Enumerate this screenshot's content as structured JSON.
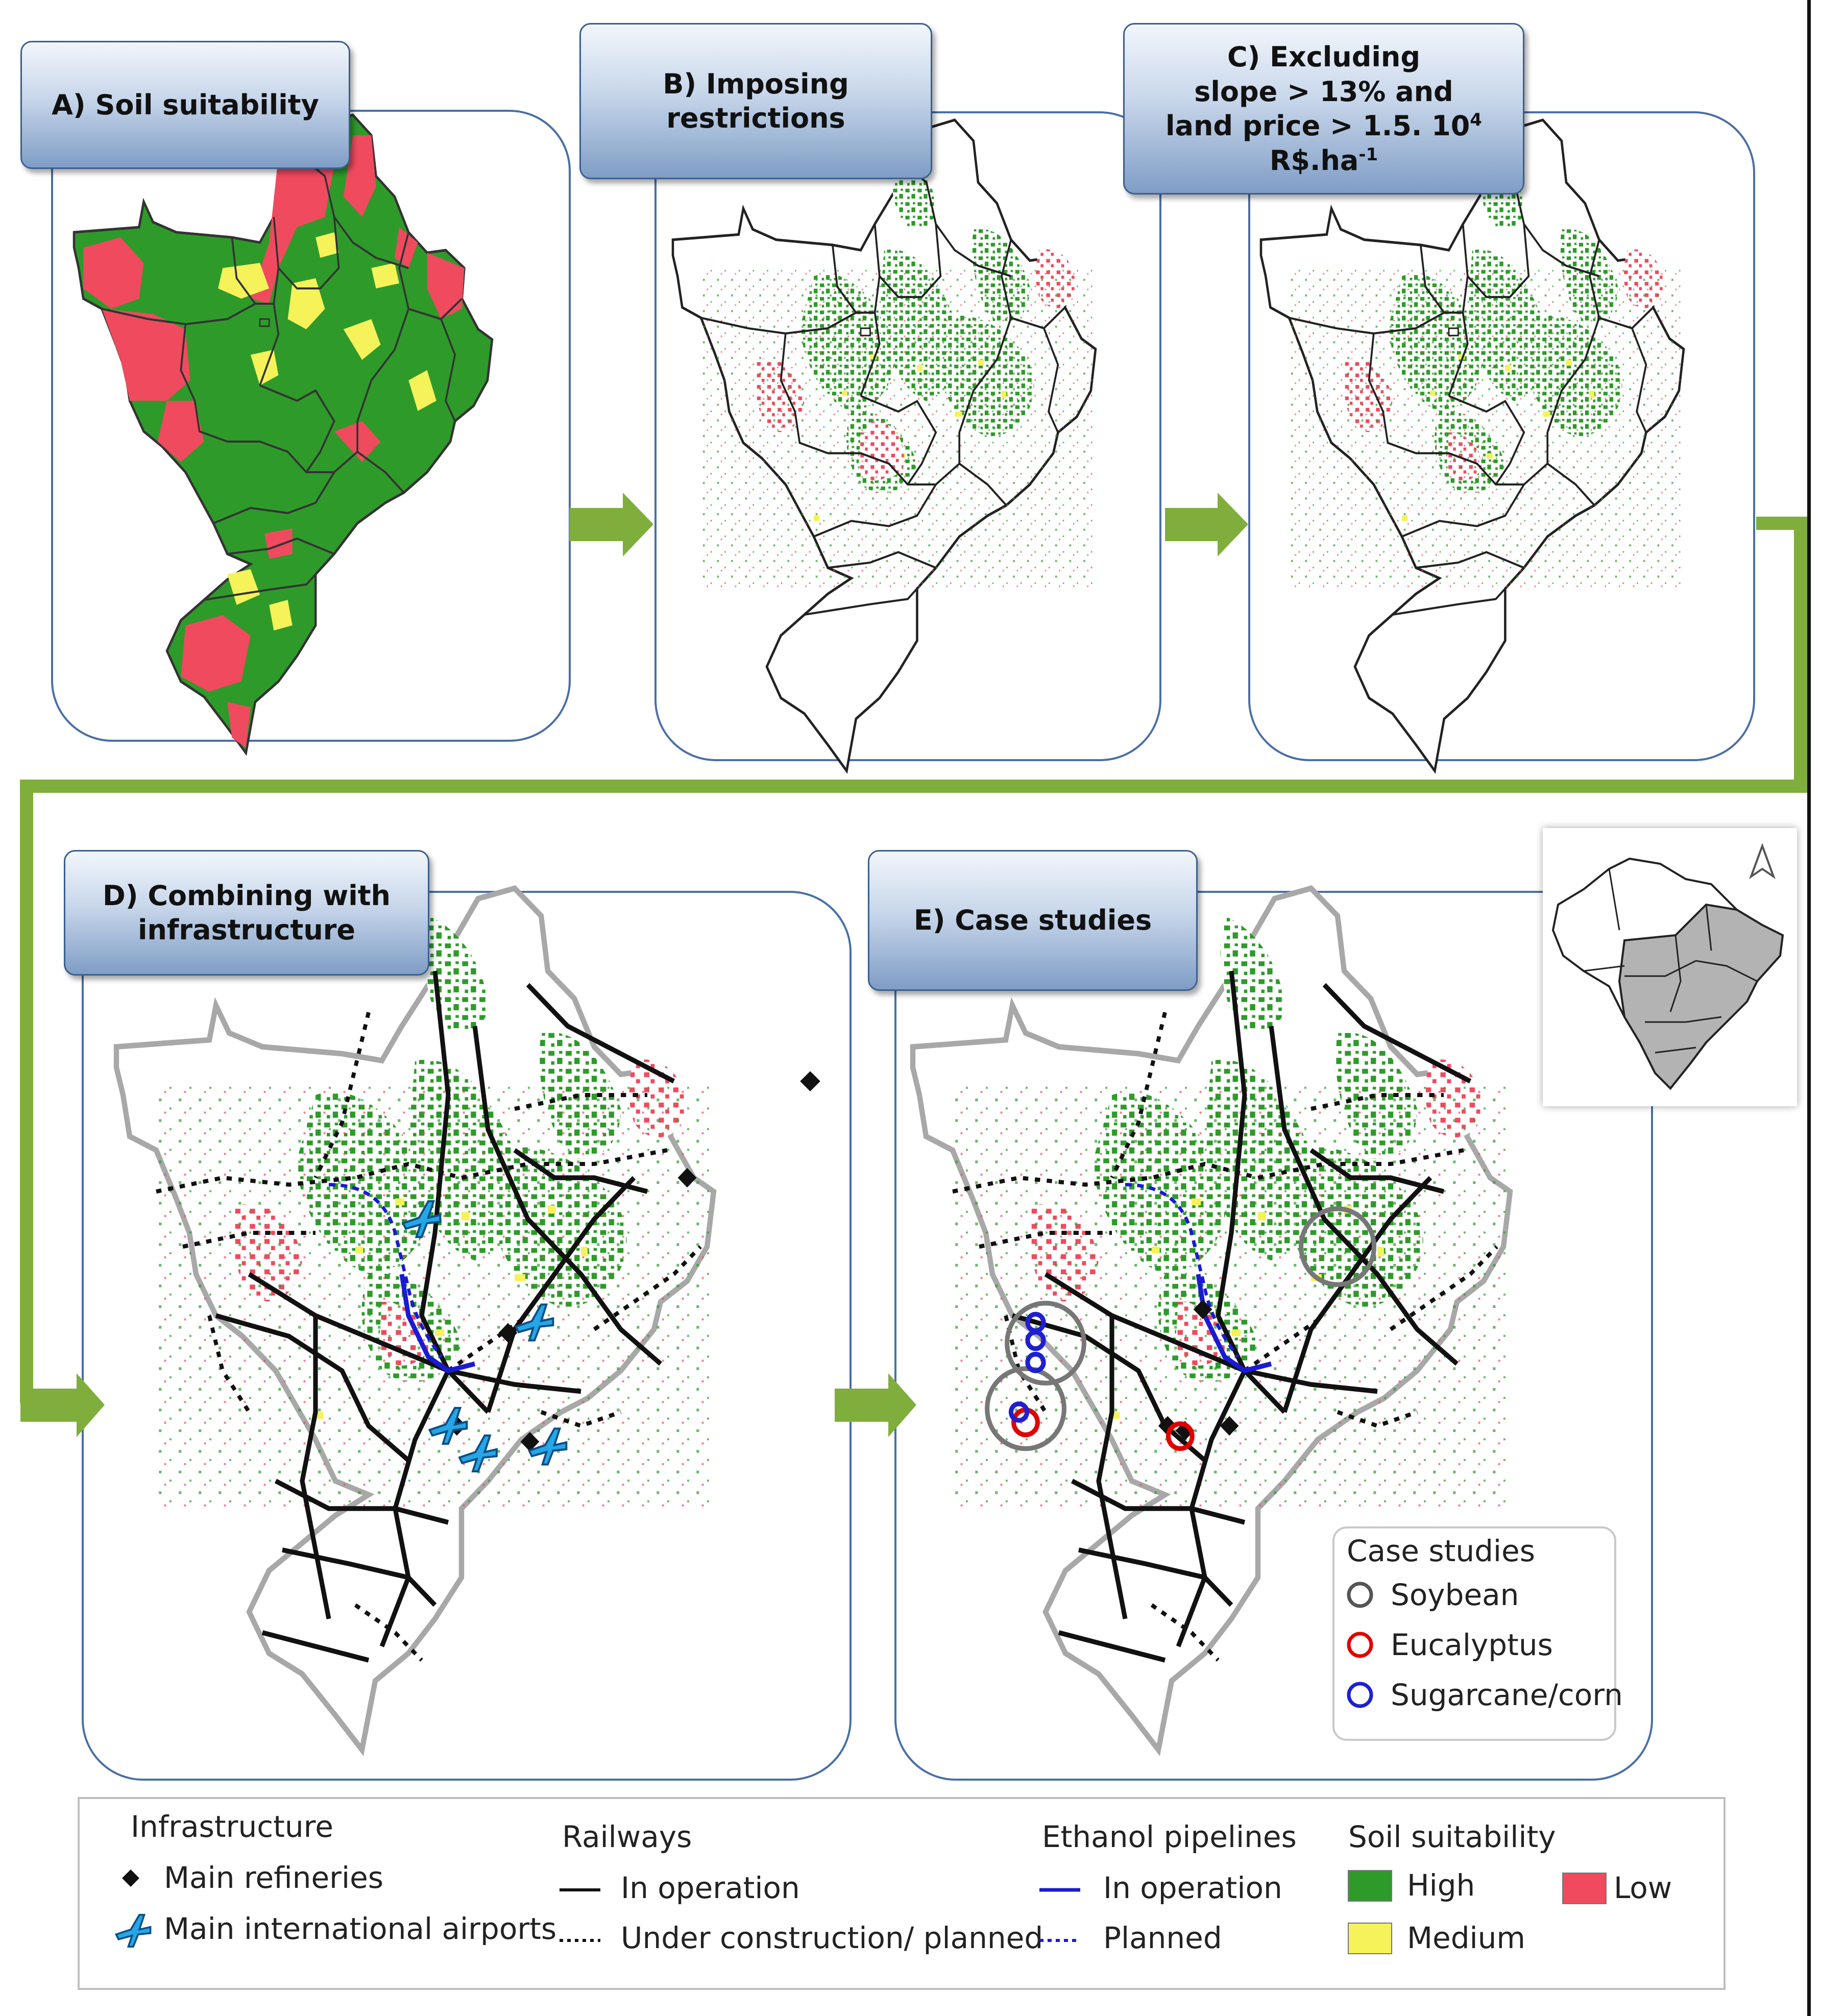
{
  "panels": {
    "a": {
      "title": "A) Soil suitability"
    },
    "b": {
      "title": "B) Imposing\nrestrictions"
    },
    "c": {
      "title_line1": "C) Excluding",
      "title_line2": "slope > 13% and",
      "title_line3a": "land price > 1.5. 10",
      "title_line3_sup": "4",
      "title_line4a": "R$.ha",
      "title_line4_sup": "-1"
    },
    "d": {
      "title": "D) Combining with\ninfrastructure"
    },
    "e": {
      "title": "E) Case studies"
    }
  },
  "case_studies": {
    "title": "Case studies",
    "items": [
      {
        "label": "Soybean",
        "color": "#555555"
      },
      {
        "label": "Eucalyptus",
        "color": "#e00000"
      },
      {
        "label": "Sugarcane/corn",
        "color": "#1f1fd0"
      }
    ]
  },
  "legend": {
    "infrastructure": {
      "title": "Infrastructure",
      "refineries": "Main refineries",
      "airports": "Main international airports"
    },
    "railways": {
      "title": "Railways",
      "operation": "In operation",
      "planned": "Under construction/ planned"
    },
    "pipelines": {
      "title": "Ethanol pipelines",
      "operation": "In operation",
      "planned": "Planned"
    },
    "soil": {
      "title": "Soil suitability",
      "high": "High",
      "medium": "Medium",
      "low": "Low"
    }
  },
  "colors": {
    "high": "#2e9a2a",
    "medium": "#f5f25a",
    "low": "#ef4a5e",
    "pipeline": "#1a1ad6",
    "arrow": "#7fae3c",
    "airport": "#26a6e6"
  }
}
